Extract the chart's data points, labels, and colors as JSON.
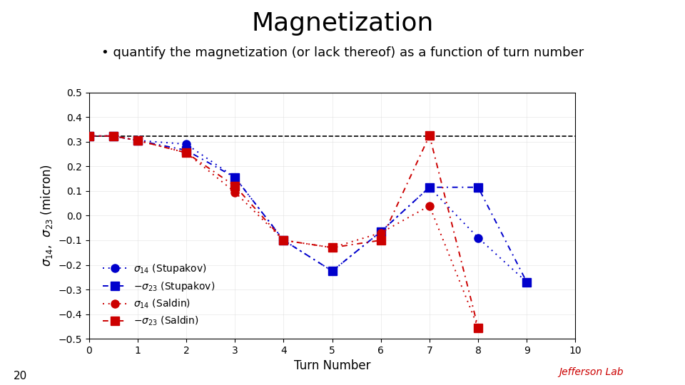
{
  "title": "Magnetization",
  "subtitle": "• quantify the magnetization (or lack thereof) as a function of turn number",
  "xlabel": "Turn Number",
  "xlim": [
    0,
    10
  ],
  "ylim": [
    -0.5,
    0.5
  ],
  "yticks": [
    -0.5,
    -0.4,
    -0.3,
    -0.2,
    -0.1,
    0.0,
    0.1,
    0.2,
    0.3,
    0.4,
    0.5
  ],
  "xticks": [
    0,
    1,
    2,
    3,
    4,
    5,
    6,
    7,
    8,
    9,
    10
  ],
  "hline_y": 0.323,
  "x_s14_stup": [
    0,
    0.5,
    1,
    2,
    3,
    4,
    5,
    6,
    7,
    8,
    9
  ],
  "y_s14_stup": [
    0.323,
    0.323,
    0.305,
    0.29,
    0.155,
    -0.1,
    -0.225,
    -0.065,
    0.115,
    -0.09,
    -0.27
  ],
  "x_ns23_stup": [
    0,
    0.5,
    1,
    2,
    3,
    4,
    5,
    6,
    7,
    8,
    9
  ],
  "y_ns23_stup": [
    0.323,
    0.323,
    0.305,
    0.265,
    0.155,
    -0.1,
    -0.225,
    -0.065,
    0.115,
    0.115,
    -0.27
  ],
  "x_s14_sal": [
    0,
    0.5,
    1,
    2,
    3,
    4,
    5,
    6,
    7,
    8
  ],
  "y_s14_sal": [
    0.323,
    0.323,
    0.305,
    0.255,
    0.095,
    -0.1,
    -0.13,
    -0.07,
    0.04,
    -0.455
  ],
  "x_ns23_sal": [
    0,
    0.5,
    1,
    2,
    3,
    4,
    5,
    6,
    7,
    8
  ],
  "y_ns23_sal": [
    0.323,
    0.323,
    0.305,
    0.255,
    0.12,
    -0.1,
    -0.13,
    -0.1,
    0.325,
    -0.455
  ],
  "blue_color": "#0000CC",
  "red_color": "#CC0000",
  "background_color": "#ffffff",
  "title_fontsize": 26,
  "subtitle_fontsize": 13,
  "axis_label_fontsize": 12,
  "tick_fontsize": 10,
  "legend_fontsize": 10,
  "page_number": "20"
}
